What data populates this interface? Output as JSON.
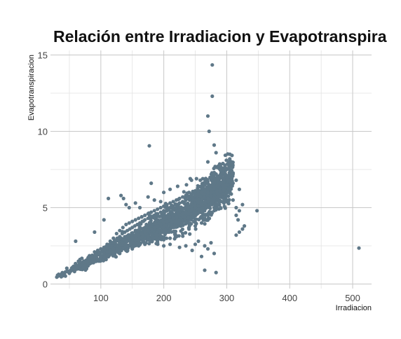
{
  "chart_data": {
    "type": "scatter",
    "title": "Relación entre Irradiacion y Evapotranspira",
    "xlabel": "Irradiacion",
    "ylabel": "Evapotranspiracion",
    "xlim": [
      20,
      530
    ],
    "ylim": [
      -0.3,
      15.3
    ],
    "x_ticks": [
      100,
      200,
      300,
      400,
      500
    ],
    "y_ticks": [
      0,
      5,
      10,
      15
    ],
    "grid": true,
    "point_color": "#5f7888",
    "legend": "none",
    "series": [
      {
        "points": [
          [
            30,
            0.45
          ],
          [
            33,
            0.55
          ],
          [
            38,
            0.6
          ],
          [
            42,
            0.65
          ],
          [
            48,
            0.8
          ],
          [
            52,
            0.9
          ],
          [
            58,
            1.0
          ],
          [
            62,
            1.1
          ],
          [
            66,
            1.2
          ],
          [
            70,
            1.3
          ],
          [
            74,
            1.4
          ],
          [
            78,
            1.5
          ],
          [
            82,
            1.6
          ],
          [
            86,
            1.7
          ],
          [
            90,
            1.8
          ],
          [
            94,
            1.9
          ],
          [
            98,
            2.0
          ],
          [
            102,
            2.2
          ],
          [
            106,
            2.3
          ],
          [
            110,
            2.4
          ],
          [
            114,
            2.6
          ],
          [
            118,
            2.7
          ],
          [
            122,
            2.8
          ],
          [
            126,
            3.0
          ],
          [
            130,
            3.1
          ],
          [
            134,
            3.3
          ],
          [
            138,
            3.4
          ],
          [
            142,
            3.5
          ],
          [
            146,
            3.6
          ],
          [
            150,
            3.7
          ],
          [
            154,
            3.8
          ],
          [
            158,
            3.9
          ],
          [
            162,
            4.0
          ],
          [
            166,
            4.1
          ],
          [
            170,
            4.2
          ],
          [
            175,
            4.3
          ],
          [
            180,
            4.4
          ],
          [
            185,
            4.5
          ],
          [
            190,
            4.6
          ],
          [
            195,
            4.7
          ],
          [
            200,
            4.8
          ],
          [
            205,
            4.9
          ],
          [
            210,
            5.0
          ],
          [
            215,
            5.1
          ],
          [
            220,
            5.2
          ],
          [
            225,
            5.3
          ],
          [
            230,
            5.4
          ],
          [
            235,
            5.5
          ],
          [
            240,
            5.6
          ],
          [
            245,
            5.7
          ],
          [
            250,
            5.8
          ],
          [
            255,
            5.9
          ],
          [
            260,
            6.0
          ],
          [
            265,
            6.1
          ],
          [
            270,
            6.2
          ],
          [
            275,
            6.3
          ],
          [
            280,
            6.4
          ],
          [
            285,
            6.5
          ],
          [
            290,
            6.6
          ],
          [
            295,
            6.7
          ],
          [
            100,
            1.9
          ],
          [
            105,
            2.0
          ],
          [
            110,
            2.1
          ],
          [
            115,
            2.2
          ],
          [
            120,
            2.3
          ],
          [
            125,
            2.5
          ],
          [
            130,
            2.6
          ],
          [
            135,
            2.7
          ],
          [
            140,
            2.8
          ],
          [
            145,
            2.9
          ],
          [
            150,
            3.0
          ],
          [
            155,
            3.1
          ],
          [
            160,
            3.2
          ],
          [
            165,
            3.3
          ],
          [
            170,
            3.4
          ],
          [
            175,
            3.5
          ],
          [
            180,
            3.6
          ],
          [
            185,
            3.7
          ],
          [
            190,
            3.8
          ],
          [
            195,
            3.9
          ],
          [
            200,
            4.0
          ],
          [
            205,
            4.1
          ],
          [
            210,
            4.2
          ],
          [
            215,
            4.3
          ],
          [
            220,
            4.4
          ],
          [
            225,
            4.5
          ],
          [
            230,
            4.6
          ],
          [
            235,
            4.7
          ],
          [
            240,
            4.8
          ],
          [
            245,
            4.9
          ],
          [
            250,
            5.0
          ],
          [
            255,
            5.1
          ],
          [
            260,
            5.2
          ],
          [
            265,
            5.3
          ],
          [
            270,
            5.4
          ],
          [
            275,
            5.5
          ],
          [
            280,
            5.6
          ],
          [
            285,
            5.7
          ],
          [
            290,
            5.8
          ],
          [
            295,
            5.9
          ],
          [
            200,
            3.5
          ],
          [
            210,
            3.6
          ],
          [
            220,
            3.8
          ],
          [
            230,
            3.9
          ],
          [
            240,
            4.0
          ],
          [
            250,
            4.2
          ],
          [
            260,
            4.4
          ],
          [
            270,
            4.6
          ],
          [
            280,
            4.8
          ],
          [
            290,
            5.0
          ],
          [
            300,
            5.5
          ],
          [
            300,
            6.0
          ],
          [
            300,
            6.5
          ],
          [
            300,
            7.0
          ],
          [
            305,
            6.8
          ],
          [
            305,
            6.2
          ],
          [
            310,
            6.6
          ],
          [
            310,
            7.2
          ],
          [
            295,
            7.5
          ],
          [
            290,
            7.8
          ],
          [
            285,
            7.0
          ],
          [
            280,
            7.3
          ],
          [
            275,
            6.9
          ],
          [
            270,
            6.7
          ],
          [
            265,
            6.5
          ],
          [
            260,
            6.3
          ],
          [
            255,
            6.4
          ],
          [
            250,
            6.1
          ],
          [
            245,
            5.9
          ],
          [
            240,
            6.0
          ],
          [
            235,
            5.8
          ],
          [
            230,
            5.7
          ],
          [
            225,
            5.6
          ],
          [
            220,
            5.5
          ],
          [
            215,
            5.4
          ],
          [
            210,
            5.3
          ],
          [
            205,
            5.2
          ],
          [
            200,
            5.1
          ],
          [
            195,
            5.0
          ],
          [
            190,
            4.9
          ],
          [
            185,
            4.8
          ],
          [
            180,
            4.7
          ],
          [
            175,
            4.6
          ],
          [
            170,
            4.5
          ],
          [
            165,
            4.4
          ],
          [
            160,
            4.3
          ],
          [
            155,
            4.2
          ],
          [
            150,
            4.1
          ],
          [
            145,
            4.0
          ],
          [
            140,
            3.9
          ],
          [
            135,
            3.7
          ],
          [
            130,
            3.5
          ],
          [
            125,
            3.3
          ],
          [
            120,
            3.0
          ],
          [
            115,
            2.8
          ],
          [
            110,
            2.6
          ],
          [
            105,
            2.4
          ],
          [
            100,
            2.3
          ],
          [
            95,
            2.2
          ],
          [
            90,
            2.1
          ],
          [
            260,
            4.0
          ],
          [
            265,
            4.3
          ],
          [
            270,
            4.5
          ],
          [
            275,
            4.7
          ],
          [
            280,
            5.0
          ],
          [
            285,
            5.2
          ],
          [
            290,
            5.4
          ],
          [
            295,
            5.6
          ],
          [
            300,
            5.8
          ],
          [
            250,
            3.8
          ],
          [
            240,
            3.6
          ],
          [
            230,
            3.3
          ],
          [
            220,
            3.1
          ],
          [
            210,
            3.0
          ],
          [
            200,
            2.9
          ],
          [
            190,
            3.2
          ],
          [
            180,
            3.3
          ],
          [
            170,
            3.0
          ],
          [
            160,
            2.9
          ],
          [
            150,
            2.7
          ],
          [
            140,
            2.5
          ],
          [
            130,
            2.3
          ],
          [
            120,
            2.1
          ],
          [
            110,
            1.9
          ],
          [
            100,
            1.7
          ],
          [
            95,
            1.6
          ],
          [
            90,
            1.5
          ],
          [
            85,
            1.4
          ],
          [
            80,
            1.3
          ],
          [
            75,
            1.2
          ],
          [
            60,
            2.8
          ],
          [
            90,
            3.4
          ],
          [
            105,
            4.2
          ],
          [
            112,
            5.6
          ],
          [
            132,
            5.8
          ],
          [
            136,
            5.6
          ],
          [
            140,
            5.2
          ],
          [
            145,
            5.0
          ],
          [
            155,
            5.3
          ],
          [
            162,
            5.0
          ],
          [
            175,
            5.7
          ],
          [
            185,
            5.5
          ],
          [
            195,
            5.4
          ],
          [
            180,
            6.6
          ],
          [
            188,
            4.6
          ],
          [
            200,
            6.0
          ],
          [
            210,
            6.2
          ],
          [
            222,
            6.4
          ],
          [
            236,
            6.5
          ],
          [
            244,
            6.8
          ],
          [
            252,
            6.9
          ],
          [
            258,
            6.8
          ],
          [
            262,
            6.9
          ],
          [
            275,
            7.0
          ],
          [
            283,
            7.2
          ],
          [
            295,
            7.3
          ],
          [
            300,
            7.1
          ],
          [
            308,
            6.9
          ],
          [
            315,
            6.8
          ],
          [
            320,
            6.2
          ],
          [
            310,
            5.5
          ],
          [
            315,
            5.0
          ],
          [
            320,
            4.8
          ],
          [
            325,
            5.2
          ],
          [
            315,
            4.5
          ],
          [
            318,
            4.2
          ],
          [
            325,
            3.6
          ],
          [
            328,
            3.8
          ],
          [
            315,
            3.2
          ],
          [
            320,
            3.4
          ],
          [
            250,
            2.6
          ],
          [
            255,
            2.8
          ],
          [
            265,
            2.5
          ],
          [
            270,
            2.3
          ],
          [
            275,
            2.7
          ],
          [
            280,
            2.0
          ],
          [
            260,
            1.8
          ],
          [
            245,
            2.2
          ],
          [
            235,
            2.5
          ],
          [
            225,
            2.4
          ],
          [
            210,
            2.6
          ],
          [
            200,
            2.5
          ],
          [
            190,
            2.7
          ],
          [
            180,
            2.8
          ],
          [
            170,
            2.6
          ],
          [
            160,
            2.5
          ],
          [
            150,
            2.3
          ],
          [
            140,
            2.2
          ],
          [
            130,
            2.0
          ],
          [
            120,
            1.9
          ],
          [
            265,
            0.9
          ],
          [
            283,
            0.75
          ],
          [
            348,
            4.8
          ],
          [
            510,
            2.35
          ],
          [
            177,
            9.05
          ],
          [
            277,
            14.35
          ],
          [
            277,
            12.3
          ],
          [
            270,
            11.0
          ],
          [
            272,
            10.0
          ],
          [
            280,
            9.1
          ],
          [
            283,
            8.6
          ],
          [
            305,
            8.1
          ],
          [
            270,
            8.0
          ],
          [
            242,
            6.9
          ]
        ]
      }
    ]
  }
}
